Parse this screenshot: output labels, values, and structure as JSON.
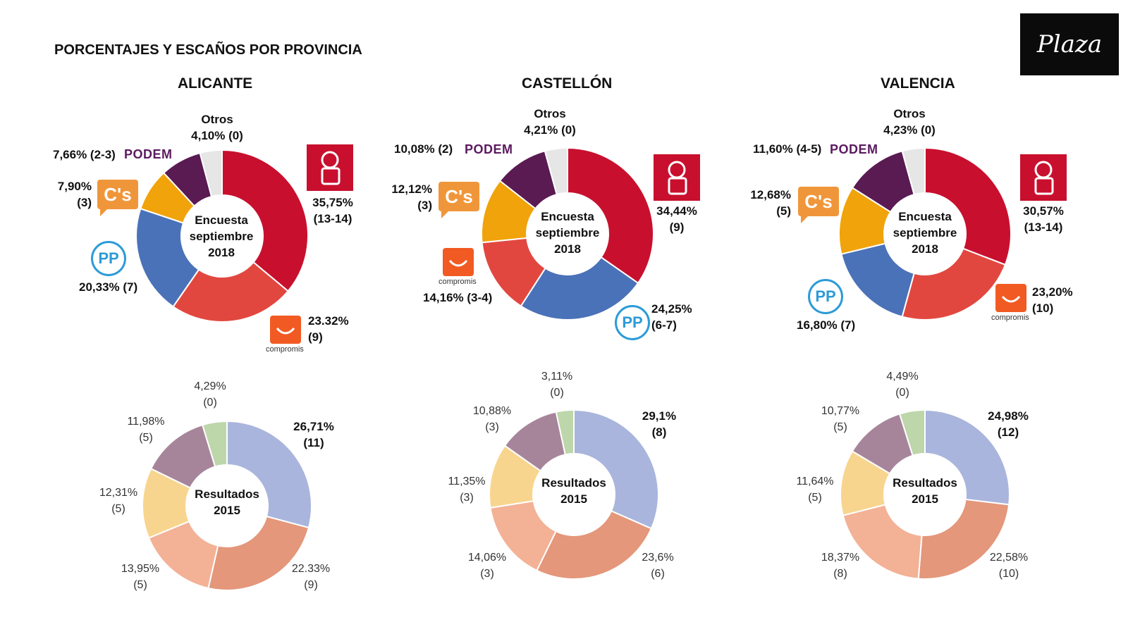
{
  "header": {
    "title": "PORCENTAJES Y ESCAÑOS POR PROVINCIA",
    "logo": "Plaza"
  },
  "logos": {
    "podemos": "PODEM",
    "cs": "C's",
    "compromis": "compromis",
    "pp": "PP"
  },
  "colors": {
    "psoe": "#c8102e",
    "compromis": "#e2473f",
    "pp": "#4a72b8",
    "cs": "#f0a30a",
    "podemos": "#5a1a52",
    "otros": "#e6e6e6",
    "r2015_1": "#a9b5dc",
    "r2015_2": "#e4977a",
    "r2015_3": "#f3b196",
    "r2015_4": "#f8d58e",
    "r2015_5": "#a6859b",
    "r2015_6": "#bdd6aa"
  },
  "chart_data": [
    {
      "type": "pie",
      "title": "ALICANTE",
      "center": [
        "Encuesta",
        "septiembre",
        "2018"
      ],
      "slices": [
        {
          "party": "PSOE",
          "label": "35,75%",
          "seats": "(13-14)",
          "value": 35.75
        },
        {
          "party": "Compromís",
          "label": "23.32%",
          "seats": "(9)",
          "value": 23.32
        },
        {
          "party": "PP",
          "label": "20,33% (7)",
          "value": 20.33
        },
        {
          "party": "Cs",
          "label": "7,90%",
          "seats": "(3)",
          "value": 7.9
        },
        {
          "party": "Podemos",
          "label": "7,66% (2-3)",
          "value": 7.66
        },
        {
          "party": "Otros",
          "name": "Otros",
          "label": "4,10% (0)",
          "value": 4.1
        }
      ]
    },
    {
      "type": "pie",
      "title": "CASTELLÓN",
      "center": [
        "Encuesta",
        "septiembre",
        "2018"
      ],
      "slices": [
        {
          "party": "PSOE",
          "label": "34,44%",
          "seats": "(9)",
          "value": 34.44
        },
        {
          "party": "PP",
          "label": "24,25%",
          "seats": "(6-7)",
          "value": 24.25
        },
        {
          "party": "Compromís",
          "label": "14,16% (3-4)",
          "value": 14.16
        },
        {
          "party": "Cs",
          "label": "12,12%",
          "seats": "(3)",
          "value": 12.12
        },
        {
          "party": "Podemos",
          "label": "10,08% (2)",
          "value": 10.08
        },
        {
          "party": "Otros",
          "name": "Otros",
          "label": "4,21% (0)",
          "value": 4.21
        }
      ]
    },
    {
      "type": "pie",
      "title": "VALENCIA",
      "center": [
        "Encuesta",
        "septiembre",
        "2018"
      ],
      "slices": [
        {
          "party": "PSOE",
          "label": "30,57%",
          "seats": "(13-14)",
          "value": 30.57
        },
        {
          "party": "Compromís",
          "label": "23,20%",
          "seats": "(10)",
          "value": 23.2
        },
        {
          "party": "PP",
          "label": "16,80% (7)",
          "value": 16.8
        },
        {
          "party": "Cs",
          "label": "12,68%",
          "seats": "(5)",
          "value": 12.68
        },
        {
          "party": "Podemos",
          "label": "11,60% (4-5)",
          "value": 11.6
        },
        {
          "party": "Otros",
          "name": "Otros",
          "label": "4,23% (0)",
          "value": 4.23
        }
      ]
    },
    {
      "type": "pie",
      "title": "",
      "center": [
        "Resultados",
        "2015"
      ],
      "slices": [
        {
          "label": "26,71%",
          "seats": "(11)",
          "value": 26.71
        },
        {
          "label": "22.33%",
          "seats": "(9)",
          "value": 22.33
        },
        {
          "label": "13,95%",
          "seats": "(5)",
          "value": 13.95
        },
        {
          "label": "12,31%",
          "seats": "(5)",
          "value": 12.31
        },
        {
          "label": "11,98%",
          "seats": "(5)",
          "value": 11.98
        },
        {
          "label": "4,29%",
          "seats": "(0)",
          "value": 4.29
        }
      ]
    },
    {
      "type": "pie",
      "title": "",
      "center": [
        "Resultados",
        "2015"
      ],
      "slices": [
        {
          "label": "29,1%",
          "seats": "(8)",
          "value": 29.1
        },
        {
          "label": "23,6%",
          "seats": "(6)",
          "value": 23.6
        },
        {
          "label": "14,06%",
          "seats": "(3)",
          "value": 14.06
        },
        {
          "label": "11,35%",
          "seats": "(3)",
          "value": 11.35
        },
        {
          "label": "10,88%",
          "seats": "(3)",
          "value": 10.88
        },
        {
          "label": "3,11%",
          "seats": "(0)",
          "value": 3.11
        }
      ]
    },
    {
      "type": "pie",
      "title": "",
      "center": [
        "Resultados",
        "2015"
      ],
      "slices": [
        {
          "label": "24,98%",
          "seats": "(12)",
          "value": 24.98
        },
        {
          "label": "22,58%",
          "seats": "(10)",
          "value": 22.58
        },
        {
          "label": "18,37%",
          "seats": "(8)",
          "value": 18.37
        },
        {
          "label": "11,64%",
          "seats": "(5)",
          "value": 11.64
        },
        {
          "label": "10,77%",
          "seats": "(5)",
          "value": 10.77
        },
        {
          "label": "4,49%",
          "seats": "(0)",
          "value": 4.49
        }
      ]
    }
  ]
}
